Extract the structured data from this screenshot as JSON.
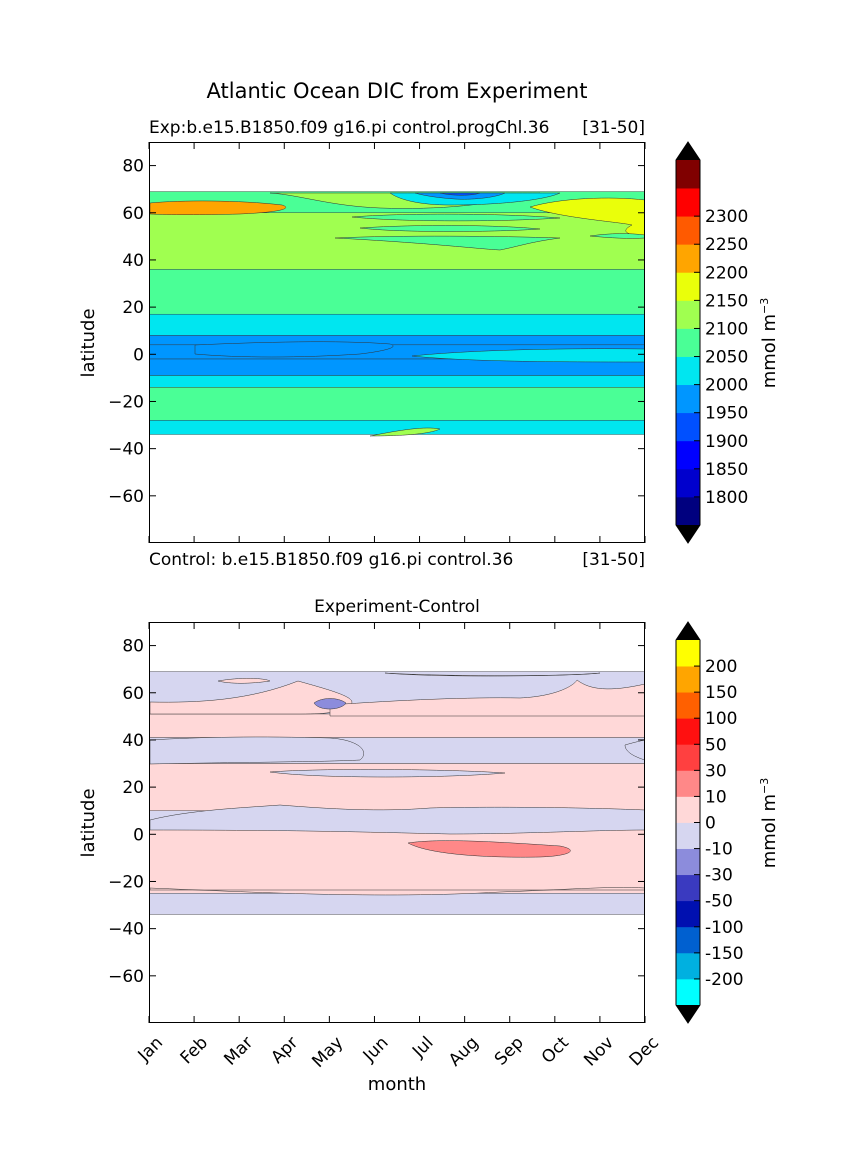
{
  "figure": {
    "title": "Atlantic Ocean DIC from Experiment"
  },
  "chart_data": [
    {
      "type": "contourf",
      "title_left": "Exp:b.e15.B1850.f09 g16.pi control.progChl.36",
      "title_right": "[31-50]",
      "subtitle_below_left": "Control: b.e15.B1850.f09 g16.pi control.36",
      "subtitle_below_right": "[31-50]",
      "xlabel": "",
      "ylabel": "latitude",
      "x": [
        "Jan",
        "Feb",
        "Mar",
        "Apr",
        "May",
        "Jun",
        "Jul",
        "Aug",
        "Sep",
        "Oct",
        "Nov",
        "Dec"
      ],
      "xlim": [
        0,
        11
      ],
      "ylim": [
        -80,
        90
      ],
      "yticks": [
        80,
        60,
        40,
        20,
        0,
        -20,
        -40,
        -60
      ],
      "data_lat_range": [
        -34,
        69
      ],
      "colorbar": {
        "label": "mmol m",
        "label_exponent": "−3",
        "levels": [
          1750,
          1800,
          1850,
          1900,
          1950,
          2000,
          2050,
          2100,
          2150,
          2200,
          2250,
          2300,
          2350
        ],
        "tick_labels": [
          "1800",
          "1850",
          "1900",
          "1950",
          "2000",
          "2050",
          "2100",
          "2150",
          "2200",
          "2250",
          "2300"
        ],
        "colors": [
          "#00007f",
          "#0000cd",
          "#0000ff",
          "#0050ff",
          "#0096ff",
          "#00e6f0",
          "#4aff96",
          "#a0ff50",
          "#eaff0a",
          "#ffa500",
          "#ff5a00",
          "#ff0000",
          "#800000"
        ],
        "extend": "both"
      },
      "bands": [
        {
          "lat_min": 60,
          "lat_max": 69,
          "value": 2075
        },
        {
          "lat_min": 36,
          "lat_max": 60,
          "value": 2110
        },
        {
          "lat_min": 17,
          "lat_max": 36,
          "value": 2075
        },
        {
          "lat_min": 8,
          "lat_max": 17,
          "value": 2025
        },
        {
          "lat_min": 4,
          "lat_max": 8,
          "value": 1990
        },
        {
          "lat_min": -2,
          "lat_max": 4,
          "value": 1960
        },
        {
          "lat_min": -9,
          "lat_max": -2,
          "value": 1990
        },
        {
          "lat_min": -14,
          "lat_max": -9,
          "value": 2025
        },
        {
          "lat_min": -28,
          "lat_max": -14,
          "value": 2075
        },
        {
          "lat_min": -34,
          "lat_max": -28,
          "value": 2025
        }
      ]
    },
    {
      "type": "contourf",
      "title": "Experiment-Control",
      "xlabel": "month",
      "ylabel": "latitude",
      "x": [
        "Jan",
        "Feb",
        "Mar",
        "Apr",
        "May",
        "Jun",
        "Jul",
        "Aug",
        "Sep",
        "Oct",
        "Nov",
        "Dec"
      ],
      "xlim": [
        0,
        11
      ],
      "ylim": [
        -80,
        90
      ],
      "yticks": [
        80,
        60,
        40,
        20,
        0,
        -20,
        -40,
        -60
      ],
      "data_lat_range": [
        -34,
        69
      ],
      "colorbar": {
        "label": "mmol m",
        "label_exponent": "−3",
        "levels": [
          -250,
          -200,
          -150,
          -100,
          -50,
          -30,
          -10,
          0,
          10,
          30,
          50,
          100,
          150,
          200,
          250
        ],
        "tick_labels": [
          "-200",
          "-150",
          "-100",
          "-50",
          "-30",
          "-10",
          "0",
          "10",
          "30",
          "50",
          "100",
          "150",
          "200"
        ],
        "colors": [
          "#00ffff",
          "#00b0e0",
          "#0060d0",
          "#0010b0",
          "#3a3ac0",
          "#8c8cdc",
          "#d6d6f0",
          "#ffd8d8",
          "#ff8888",
          "#ff4040",
          "#ff1010",
          "#ff6000",
          "#ffa500",
          "#ffff00"
        ],
        "extend": "both"
      },
      "bands": [
        {
          "lat_min": 51,
          "lat_max": 69,
          "value": -5
        },
        {
          "lat_min": 41,
          "lat_max": 51,
          "value": 5
        },
        {
          "lat_min": 30,
          "lat_max": 41,
          "value": -5
        },
        {
          "lat_min": 10,
          "lat_max": 30,
          "value": 5
        },
        {
          "lat_min": 4,
          "lat_max": 10,
          "value": -5
        },
        {
          "lat_min": -25,
          "lat_max": 4,
          "value": 5
        },
        {
          "lat_min": -34,
          "lat_max": -25,
          "value": -5
        }
      ]
    }
  ]
}
